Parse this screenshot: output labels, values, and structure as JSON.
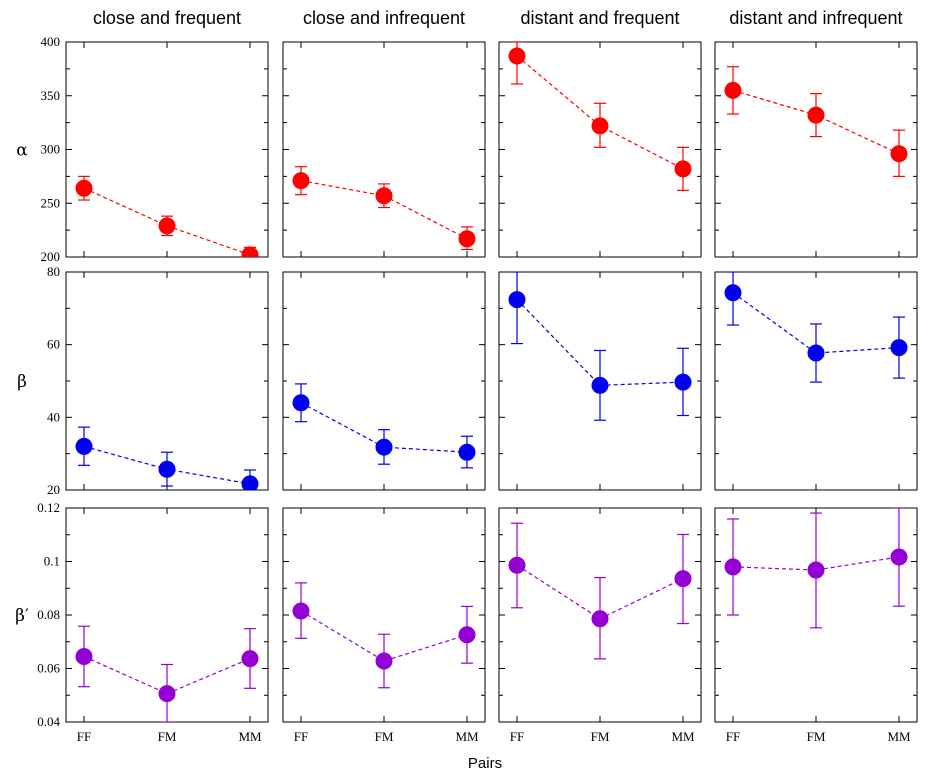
{
  "chart_data": {
    "type": "scatter",
    "xlabel": "Pairs",
    "categories": [
      "FF",
      "FM",
      "MM"
    ],
    "columns": [
      {
        "title": "close and frequent"
      },
      {
        "title": "close and infrequent"
      },
      {
        "title": "distant and frequent"
      },
      {
        "title": "distant and infrequent"
      }
    ],
    "rows": [
      {
        "label": "α",
        "color": "#ff0000",
        "ylim": [
          200,
          400
        ],
        "yticks": [
          "200",
          "250",
          "300",
          "350",
          "400"
        ],
        "ytick_values": [
          200,
          250,
          300,
          350,
          400
        ],
        "panels": [
          {
            "values": [
              264,
              229,
              202
            ],
            "lower": [
              253,
              220,
              196
            ],
            "upper": [
              275,
              238,
              209
            ]
          },
          {
            "values": [
              271,
              257,
              217
            ],
            "lower": [
              258,
              246,
              207
            ],
            "upper": [
              284,
              268,
              228
            ]
          },
          {
            "values": [
              387,
              322,
              282
            ],
            "lower": [
              361,
              302,
              262
            ],
            "upper": [
              400,
              343,
              302
            ]
          },
          {
            "values": [
              355,
              332,
              296
            ],
            "lower": [
              333,
              312,
              275
            ],
            "upper": [
              377,
              352,
              318
            ]
          }
        ]
      },
      {
        "label": "β",
        "color": "#0000ee",
        "ylim": [
          20,
          80
        ],
        "yticks": [
          "20",
          "40",
          "60",
          "80"
        ],
        "ytick_values": [
          20,
          40,
          60,
          80
        ],
        "panels": [
          {
            "values": [
              32,
              25.7,
              21.7
            ],
            "lower": [
              26.8,
              21.1,
              18.2
            ],
            "upper": [
              37.3,
              30.4,
              25.5
            ]
          },
          {
            "values": [
              44,
              31.8,
              30.4
            ],
            "lower": [
              38.8,
              27.1,
              26.1
            ],
            "upper": [
              49.2,
              36.6,
              34.8
            ]
          },
          {
            "values": [
              72.4,
              48.8,
              49.7
            ],
            "lower": [
              60.3,
              39.2,
              40.5
            ],
            "upper": [
              80,
              58.4,
              59.0
            ]
          },
          {
            "values": [
              74.3,
              57.7,
              59.2
            ],
            "lower": [
              65.4,
              49.7,
              50.8
            ],
            "upper": [
              80,
              65.7,
              67.6
            ]
          }
        ]
      },
      {
        "label": "β′",
        "color": "#9400d3",
        "ylim": [
          0.04,
          0.12
        ],
        "yticks": [
          "0.04",
          "0.06",
          "0.08",
          "0.1",
          "0.12"
        ],
        "ytick_values": [
          0.04,
          0.06,
          0.08,
          0.1,
          0.12
        ],
        "panels": [
          {
            "values": [
              0.0645,
              0.0506,
              0.0637
            ],
            "lower": [
              0.0532,
              0.04,
              0.0526
            ],
            "upper": [
              0.0758,
              0.0615,
              0.0749
            ]
          },
          {
            "values": [
              0.0815,
              0.0628,
              0.0726
            ],
            "lower": [
              0.0713,
              0.0528,
              0.062
            ],
            "upper": [
              0.092,
              0.0728,
              0.0832
            ]
          },
          {
            "values": [
              0.0986,
              0.0786,
              0.0936
            ],
            "lower": [
              0.0827,
              0.0636,
              0.0768
            ],
            "upper": [
              0.1143,
              0.094,
              0.1101
            ]
          },
          {
            "values": [
              0.098,
              0.0968,
              0.1017
            ],
            "lower": [
              0.08,
              0.0752,
              0.0833
            ],
            "upper": [
              0.1159,
              0.1181,
              0.12
            ]
          }
        ]
      }
    ]
  }
}
